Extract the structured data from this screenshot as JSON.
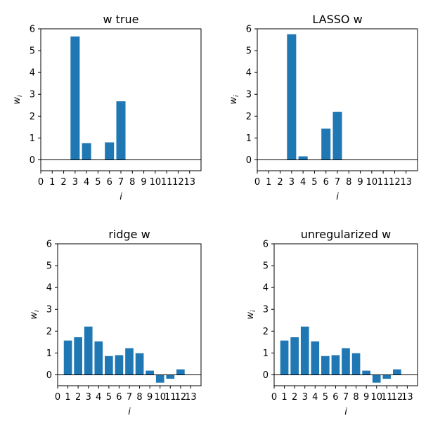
{
  "colors": {
    "bar": "#1f77b4",
    "axis": "#000000",
    "zero_line": "#000000",
    "background": "#ffffff"
  },
  "chart_data": [
    {
      "type": "bar",
      "title": "w true",
      "xlabel": "i",
      "ylabel": "w_i",
      "ylabel_base": "w",
      "ylabel_sub": "i",
      "xticks": [
        "0",
        "1",
        "2",
        "3",
        "4",
        "5",
        "6",
        "7",
        "8",
        "9",
        "10",
        "11",
        "12",
        "13"
      ],
      "yticks": [
        "0",
        "1",
        "2",
        "3",
        "4",
        "5",
        "6"
      ],
      "xlim": [
        0,
        14
      ],
      "ylim": [
        -0.5,
        6
      ],
      "categories": [
        0,
        1,
        2,
        3,
        4,
        5,
        6,
        7,
        8,
        9,
        10,
        11,
        12,
        13
      ],
      "values": [
        0,
        0,
        0,
        5.65,
        0.76,
        0,
        0.8,
        2.68,
        0,
        0,
        0,
        0,
        0,
        0
      ],
      "zero_line": true,
      "grid": false
    },
    {
      "type": "bar",
      "title": "LASSO w",
      "xlabel": "i",
      "ylabel": "w_i",
      "ylabel_base": "w",
      "ylabel_sub": "i",
      "xticks": [
        "0",
        "1",
        "2",
        "3",
        "4",
        "5",
        "6",
        "7",
        "8",
        "9",
        "10",
        "11",
        "12",
        "13"
      ],
      "yticks": [
        "0",
        "1",
        "2",
        "3",
        "4",
        "5",
        "6"
      ],
      "xlim": [
        0,
        14
      ],
      "ylim": [
        -0.5,
        6
      ],
      "categories": [
        0,
        1,
        2,
        3,
        4,
        5,
        6,
        7,
        8,
        9,
        10,
        11,
        12,
        13
      ],
      "values": [
        0,
        0,
        0,
        5.75,
        0.16,
        0,
        1.43,
        2.2,
        0,
        0,
        0,
        0,
        0,
        0
      ],
      "zero_line": true,
      "grid": false
    },
    {
      "type": "bar",
      "title": "ridge w",
      "xlabel": "i",
      "ylabel": "w_i",
      "ylabel_base": "w",
      "ylabel_sub": "i",
      "xticks": [
        "0",
        "1",
        "2",
        "3",
        "4",
        "5",
        "6",
        "7",
        "8",
        "9",
        "10",
        "11",
        "12",
        "13"
      ],
      "yticks": [
        "0",
        "1",
        "2",
        "3",
        "4",
        "5",
        "6"
      ],
      "xlim": [
        0,
        14
      ],
      "ylim": [
        -0.5,
        6
      ],
      "categories": [
        0,
        1,
        2,
        3,
        4,
        5,
        6,
        7,
        8,
        9,
        10,
        11,
        12,
        13
      ],
      "values": [
        0,
        1.57,
        1.72,
        2.21,
        1.53,
        0.86,
        0.9,
        1.22,
        0.99,
        0.19,
        -0.36,
        -0.18,
        0.25,
        0
      ],
      "zero_line": true,
      "grid": false
    },
    {
      "type": "bar",
      "title": "unregularized w",
      "xlabel": "i",
      "ylabel": "w_i",
      "ylabel_base": "w",
      "ylabel_sub": "i",
      "xticks": [
        "0",
        "1",
        "2",
        "3",
        "4",
        "5",
        "6",
        "7",
        "8",
        "9",
        "10",
        "11",
        "12",
        "13"
      ],
      "yticks": [
        "0",
        "1",
        "2",
        "3",
        "4",
        "5",
        "6"
      ],
      "xlim": [
        0,
        14
      ],
      "ylim": [
        -0.5,
        6
      ],
      "categories": [
        0,
        1,
        2,
        3,
        4,
        5,
        6,
        7,
        8,
        9,
        10,
        11,
        12,
        13
      ],
      "values": [
        0,
        1.57,
        1.72,
        2.21,
        1.53,
        0.86,
        0.9,
        1.22,
        0.99,
        0.19,
        -0.36,
        -0.18,
        0.25,
        0
      ],
      "zero_line": true,
      "grid": false
    }
  ]
}
